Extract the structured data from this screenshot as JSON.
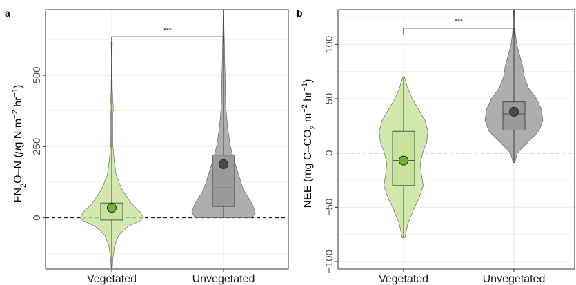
{
  "colors": {
    "vegetated_fill": "#c5e39a",
    "vegetated_point": "#6fae3f",
    "unvegetated_fill": "#9a9a9a",
    "unvegetated_point": "#4a4a4a",
    "grid": "#ebebeb",
    "panel_border": "#333333"
  },
  "chart_data": [
    {
      "panel_label": "a",
      "type": "violin",
      "ylabel_parts": {
        "a": "FN",
        "b": "2",
        "c": "O–N (",
        "d": "μ",
        "e": "g N m",
        "f": "−2",
        "g": " hr",
        "h": "−1",
        "i": ")"
      },
      "ylim": [
        -180,
        730
      ],
      "yticks": [
        0,
        250,
        500
      ],
      "ytick_labels": [
        "0",
        "250",
        "500"
      ],
      "categories": [
        "Vegetated",
        "Unvegetated"
      ],
      "reference_line": 0,
      "significance": "***",
      "sig_bracket_y": 635,
      "groups": [
        {
          "name": "Vegetated",
          "box": {
            "q1": -8,
            "median": 10,
            "q3": 52,
            "whisker_low": -175,
            "whisker_high": 615
          },
          "mean": 35,
          "density": [
            [
              -175,
              0.02
            ],
            [
              -140,
              0.04
            ],
            [
              -100,
              0.09
            ],
            [
              -60,
              0.22
            ],
            [
              -30,
              0.52
            ],
            [
              -10,
              0.9
            ],
            [
              0,
              1.0
            ],
            [
              20,
              0.9
            ],
            [
              50,
              0.62
            ],
            [
              100,
              0.32
            ],
            [
              150,
              0.14
            ],
            [
              200,
              0.08
            ],
            [
              250,
              0.04
            ],
            [
              300,
              0.03
            ],
            [
              350,
              0.03
            ],
            [
              390,
              0.05
            ],
            [
              420,
              0.03
            ],
            [
              450,
              0.02
            ],
            [
              550,
              0.01
            ],
            [
              615,
              0.02
            ]
          ]
        },
        {
          "name": "Unvegetated",
          "box": {
            "q1": 40,
            "median": 105,
            "q3": 220,
            "whisker_low": 0,
            "whisker_high": 730
          },
          "mean": 188,
          "density": [
            [
              0,
              0.9
            ],
            [
              20,
              1.0
            ],
            [
              50,
              0.9
            ],
            [
              100,
              0.62
            ],
            [
              150,
              0.48
            ],
            [
              200,
              0.34
            ],
            [
              250,
              0.22
            ],
            [
              300,
              0.15
            ],
            [
              350,
              0.1
            ],
            [
              400,
              0.07
            ],
            [
              450,
              0.06
            ],
            [
              500,
              0.05
            ],
            [
              550,
              0.04
            ],
            [
              600,
              0.03
            ],
            [
              650,
              0.02
            ],
            [
              730,
              0.01
            ]
          ]
        }
      ]
    },
    {
      "panel_label": "b",
      "type": "violin",
      "ylabel_parts": {
        "a": "NEE (mg C–CO",
        "b": "2",
        "c": " m",
        "d": "−2",
        "e": " hr",
        "f": "−1",
        "g": ")"
      },
      "ylim": [
        -107,
        132
      ],
      "yticks": [
        -100,
        -50,
        0,
        50,
        100
      ],
      "ytick_labels": [
        "−100",
        "−50",
        "0",
        "50",
        "100"
      ],
      "categories": [
        "Vegetated",
        "Unvegetated"
      ],
      "reference_line": 0,
      "significance": "***",
      "sig_bracket_y": 115,
      "groups": [
        {
          "name": "Vegetated",
          "box": {
            "q1": -30,
            "median": -7,
            "q3": 20,
            "whisker_low": -78,
            "whisker_high": 70
          },
          "mean": -7,
          "density": [
            [
              -78,
              0.05
            ],
            [
              -65,
              0.15
            ],
            [
              -50,
              0.38
            ],
            [
              -40,
              0.56
            ],
            [
              -30,
              0.68
            ],
            [
              -20,
              0.62
            ],
            [
              -10,
              0.58
            ],
            [
              0,
              0.66
            ],
            [
              10,
              0.8
            ],
            [
              20,
              0.84
            ],
            [
              30,
              0.74
            ],
            [
              40,
              0.52
            ],
            [
              50,
              0.3
            ],
            [
              60,
              0.14
            ],
            [
              70,
              0.03
            ]
          ]
        },
        {
          "name": "Unvegetated",
          "box": {
            "q1": 21,
            "median": 36,
            "q3": 47,
            "whisker_low": -9,
            "whisker_high": 132
          },
          "mean": 38,
          "density": [
            [
              -9,
              0.03
            ],
            [
              0,
              0.12
            ],
            [
              10,
              0.48
            ],
            [
              20,
              0.86
            ],
            [
              30,
              1.0
            ],
            [
              40,
              0.95
            ],
            [
              50,
              0.78
            ],
            [
              60,
              0.5
            ],
            [
              70,
              0.36
            ],
            [
              80,
              0.3
            ],
            [
              90,
              0.2
            ],
            [
              100,
              0.1
            ],
            [
              110,
              0.05
            ],
            [
              120,
              0.03
            ],
            [
              132,
              0.02
            ]
          ]
        }
      ]
    }
  ]
}
